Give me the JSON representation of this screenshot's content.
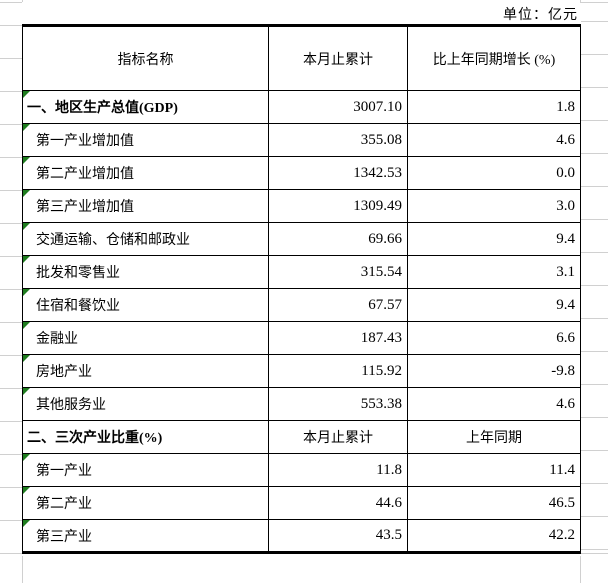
{
  "unit_label": "单位：亿元",
  "colors": {
    "border": "#000000",
    "gridline": "#d0d0d0",
    "marker_green": "#1f7d1f"
  },
  "table": {
    "header": [
      "指标名称",
      "本月止累计",
      "比上年同期增长 (%)"
    ],
    "rows": [
      {
        "label": "一、地区生产总值(GDP)",
        "style": "section",
        "marker": true,
        "values": [
          "3007.10",
          "1.8"
        ],
        "value_align": "num"
      },
      {
        "label": "第一产业增加值",
        "style": "item",
        "marker": true,
        "values": [
          "355.08",
          "4.6"
        ],
        "value_align": "num"
      },
      {
        "label": "第二产业增加值",
        "style": "item",
        "marker": true,
        "values": [
          "1342.53",
          "0.0"
        ],
        "value_align": "num"
      },
      {
        "label": "第三产业增加值",
        "style": "item",
        "marker": true,
        "values": [
          "1309.49",
          "3.0"
        ],
        "value_align": "num"
      },
      {
        "label": "交通运输、仓储和邮政业",
        "style": "item",
        "marker": true,
        "values": [
          "69.66",
          "9.4"
        ],
        "value_align": "num"
      },
      {
        "label": "批发和零售业",
        "style": "item",
        "marker": true,
        "values": [
          "315.54",
          "3.1"
        ],
        "value_align": "num"
      },
      {
        "label": "住宿和餐饮业",
        "style": "item",
        "marker": true,
        "values": [
          "67.57",
          "9.4"
        ],
        "value_align": "num"
      },
      {
        "label": "金融业",
        "style": "item",
        "marker": true,
        "values": [
          "187.43",
          "6.6"
        ],
        "value_align": "num"
      },
      {
        "label": "房地产业",
        "style": "item",
        "marker": true,
        "values": [
          "115.92",
          "-9.8"
        ],
        "value_align": "num"
      },
      {
        "label": "其他服务业",
        "style": "item",
        "marker": true,
        "values": [
          "553.38",
          "4.6"
        ],
        "value_align": "num"
      },
      {
        "label": "二、三次产业比重(%)",
        "style": "section",
        "marker": false,
        "values": [
          "本月止累计",
          "上年同期"
        ],
        "value_align": "center"
      },
      {
        "label": "第一产业",
        "style": "item",
        "marker": true,
        "values": [
          "11.8",
          "11.4"
        ],
        "value_align": "num"
      },
      {
        "label": "第二产业",
        "style": "item",
        "marker": true,
        "values": [
          "44.6",
          "46.5"
        ],
        "value_align": "num"
      },
      {
        "label": "第三产业",
        "style": "item",
        "marker": true,
        "values": [
          "43.5",
          "42.2"
        ],
        "value_align": "num"
      }
    ]
  }
}
